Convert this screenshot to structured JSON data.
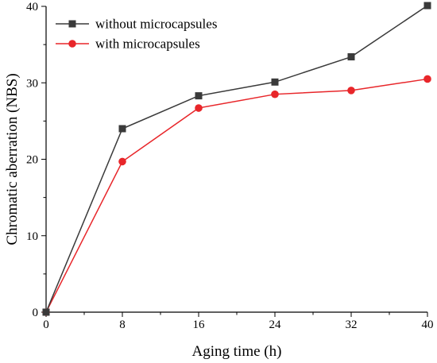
{
  "chart_data": {
    "type": "line",
    "xlabel": "Aging time (h)",
    "ylabel": "Chromatic aberration (NBS)",
    "x": [
      0,
      8,
      16,
      24,
      32,
      40
    ],
    "xticks": [
      0,
      8,
      16,
      24,
      32,
      40
    ],
    "yticks": [
      0,
      10,
      20,
      30,
      40
    ],
    "xlim": [
      0,
      40
    ],
    "ylim": [
      0,
      40
    ],
    "legend_position": "top-left",
    "grid": false,
    "series": [
      {
        "name": "without microcapsules",
        "values": [
          0,
          24.0,
          28.3,
          30.1,
          33.4,
          40.1
        ],
        "color": "#3a3a3a",
        "marker": "square"
      },
      {
        "name": "with microcapsules",
        "values": [
          0,
          19.7,
          26.7,
          28.5,
          29.0,
          30.5
        ],
        "color": "#e8262a",
        "marker": "circle"
      }
    ]
  }
}
